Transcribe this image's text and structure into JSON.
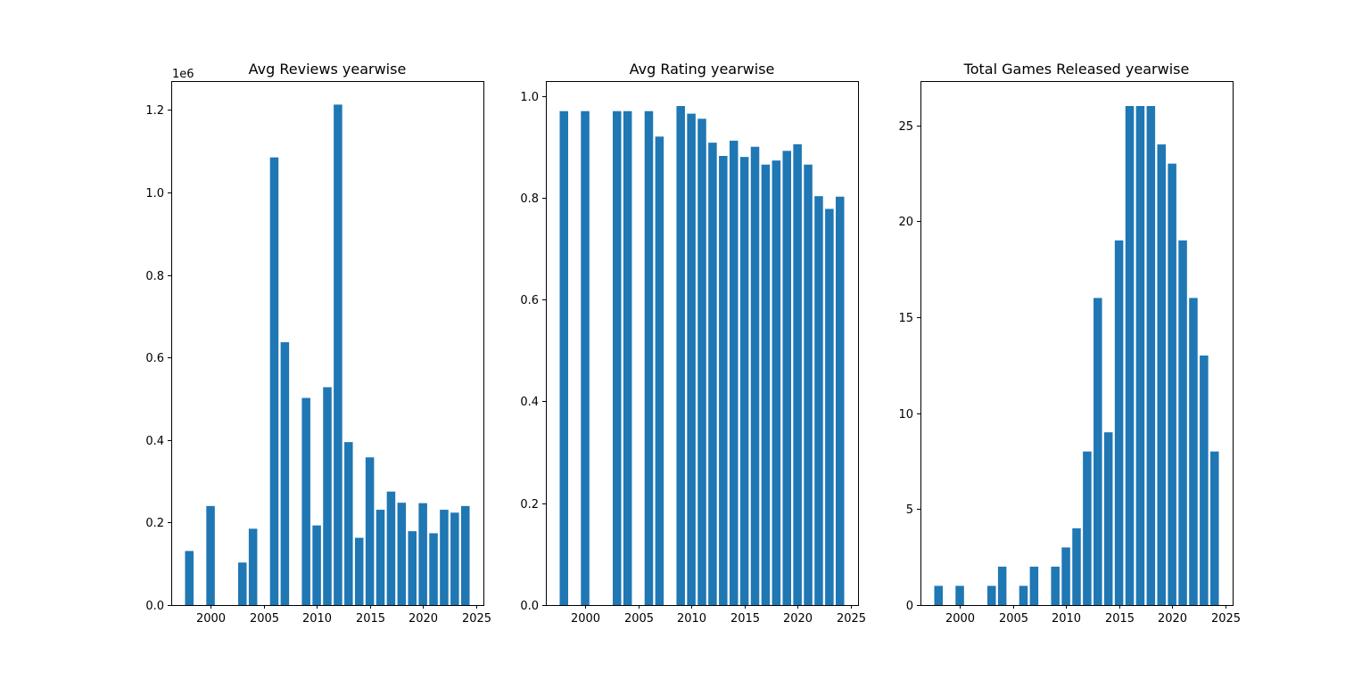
{
  "chart_data": [
    {
      "type": "bar",
      "title": "Avg Reviews yearwise",
      "offset_text": "1e6",
      "color": "#1f77b4",
      "x": [
        1998,
        2000,
        2003,
        2004,
        2006,
        2007,
        2009,
        2010,
        2011,
        2012,
        2013,
        2014,
        2015,
        2016,
        2017,
        2018,
        2019,
        2020,
        2021,
        2022,
        2023,
        2024
      ],
      "values": [
        131000,
        240000,
        103000,
        185000,
        1085000,
        637000,
        502000,
        193000,
        528000,
        1213000,
        395000,
        163000,
        358000,
        231000,
        275000,
        248000,
        179000,
        247000,
        174000,
        231000,
        224000,
        240000
      ],
      "xlim": [
        1996.3,
        2025.7
      ],
      "ylim": [
        0,
        1270000
      ],
      "xticks": [
        2000,
        2005,
        2010,
        2015,
        2020,
        2025
      ],
      "xtick_labels": [
        "2000",
        "2005",
        "2010",
        "2015",
        "2020",
        "2025"
      ],
      "yticks": [
        0,
        200000,
        400000,
        600000,
        800000,
        1000000,
        1200000
      ],
      "ytick_labels": [
        "0.0",
        "0.2",
        "0.4",
        "0.6",
        "0.8",
        "1.0",
        "1.2"
      ]
    },
    {
      "type": "bar",
      "title": "Avg Rating yearwise",
      "color": "#1f77b4",
      "x": [
        1998,
        2000,
        2003,
        2004,
        2006,
        2007,
        2009,
        2010,
        2011,
        2012,
        2013,
        2014,
        2015,
        2016,
        2017,
        2018,
        2019,
        2020,
        2021,
        2022,
        2023,
        2024
      ],
      "values": [
        0.97,
        0.97,
        0.97,
        0.97,
        0.97,
        0.92,
        0.98,
        0.965,
        0.955,
        0.908,
        0.882,
        0.912,
        0.88,
        0.9,
        0.865,
        0.873,
        0.892,
        0.905,
        0.865,
        0.803,
        0.778,
        0.802
      ],
      "xlim": [
        1996.3,
        2025.7
      ],
      "ylim": [
        0,
        1.029
      ],
      "xticks": [
        2000,
        2005,
        2010,
        2015,
        2020,
        2025
      ],
      "xtick_labels": [
        "2000",
        "2005",
        "2010",
        "2015",
        "2020",
        "2025"
      ],
      "yticks": [
        0,
        0.2,
        0.4,
        0.6,
        0.8,
        1.0
      ],
      "ytick_labels": [
        "0.0",
        "0.2",
        "0.4",
        "0.6",
        "0.8",
        "1.0"
      ]
    },
    {
      "type": "bar",
      "title": "Total Games Released yearwise",
      "color": "#1f77b4",
      "x": [
        1998,
        2000,
        2003,
        2004,
        2006,
        2007,
        2009,
        2010,
        2011,
        2012,
        2013,
        2014,
        2015,
        2016,
        2017,
        2018,
        2019,
        2020,
        2021,
        2022,
        2023,
        2024
      ],
      "values": [
        1,
        1,
        1,
        2,
        1,
        2,
        2,
        3,
        4,
        8,
        16,
        9,
        19,
        26,
        26,
        26,
        24,
        23,
        19,
        16,
        13,
        8
      ],
      "xlim": [
        1996.3,
        2025.7
      ],
      "ylim": [
        0,
        27.3
      ],
      "xticks": [
        2000,
        2005,
        2010,
        2015,
        2020,
        2025
      ],
      "xtick_labels": [
        "2000",
        "2005",
        "2010",
        "2015",
        "2020",
        "2025"
      ],
      "yticks": [
        0,
        5,
        10,
        15,
        20,
        25
      ],
      "ytick_labels": [
        "0",
        "5",
        "10",
        "15",
        "20",
        "25"
      ]
    }
  ]
}
